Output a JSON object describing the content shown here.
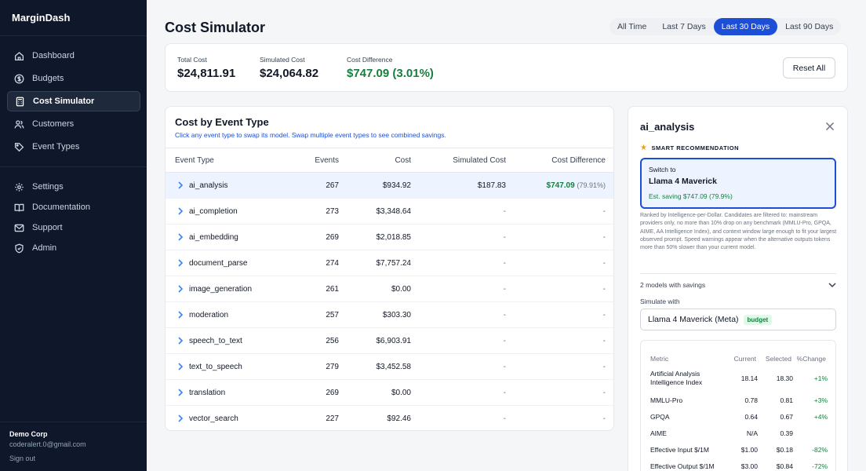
{
  "app": {
    "name": "MarginDash"
  },
  "sidebar": {
    "items": [
      {
        "label": "Dashboard",
        "icon": "home-icon"
      },
      {
        "label": "Budgets",
        "icon": "dollar-icon"
      },
      {
        "label": "Cost Simulator",
        "icon": "calculator-icon",
        "active": true
      },
      {
        "label": "Customers",
        "icon": "users-icon"
      },
      {
        "label": "Event Types",
        "icon": "tag-icon"
      }
    ],
    "secondary": [
      {
        "label": "Settings",
        "icon": "gear-icon"
      },
      {
        "label": "Documentation",
        "icon": "book-icon"
      },
      {
        "label": "Support",
        "icon": "mail-icon"
      },
      {
        "label": "Admin",
        "icon": "shield-icon"
      }
    ],
    "org_name": "Demo Corp",
    "email": "coderalert.0@gmail.com",
    "sign_out": "Sign out"
  },
  "header": {
    "title": "Cost Simulator",
    "ranges": [
      "All Time",
      "Last 7 Days",
      "Last 30 Days",
      "Last 90 Days"
    ],
    "active_range": "Last 30 Days"
  },
  "summary": {
    "total_cost_label": "Total Cost",
    "total_cost": "$24,811.91",
    "simulated_cost_label": "Simulated Cost",
    "simulated_cost": "$24,064.82",
    "cost_difference_label": "Cost Difference",
    "cost_difference": "$747.09 (3.01%)",
    "reset_label": "Reset All"
  },
  "table": {
    "title": "Cost by Event Type",
    "subtitle": "Click any event type to swap its model. Swap multiple event types to see combined savings.",
    "columns": [
      "Event Type",
      "Events",
      "Cost",
      "Simulated Cost",
      "Cost Difference"
    ],
    "rows": [
      {
        "name": "ai_analysis",
        "events": "267",
        "cost": "$934.92",
        "simulated": "$187.83",
        "diff": "$747.09",
        "diff_pct": "(79.91%)",
        "selected": true
      },
      {
        "name": "ai_completion",
        "events": "273",
        "cost": "$3,348.64",
        "simulated": "-",
        "diff": "-"
      },
      {
        "name": "ai_embedding",
        "events": "269",
        "cost": "$2,018.85",
        "simulated": "-",
        "diff": "-"
      },
      {
        "name": "document_parse",
        "events": "274",
        "cost": "$7,757.24",
        "simulated": "-",
        "diff": "-"
      },
      {
        "name": "image_generation",
        "events": "261",
        "cost": "$0.00",
        "simulated": "-",
        "diff": "-"
      },
      {
        "name": "moderation",
        "events": "257",
        "cost": "$303.30",
        "simulated": "-",
        "diff": "-"
      },
      {
        "name": "speech_to_text",
        "events": "256",
        "cost": "$6,903.91",
        "simulated": "-",
        "diff": "-"
      },
      {
        "name": "text_to_speech",
        "events": "279",
        "cost": "$3,452.58",
        "simulated": "-",
        "diff": "-"
      },
      {
        "name": "translation",
        "events": "269",
        "cost": "$0.00",
        "simulated": "-",
        "diff": "-"
      },
      {
        "name": "vector_search",
        "events": "227",
        "cost": "$92.46",
        "simulated": "-",
        "diff": "-"
      }
    ]
  },
  "panel": {
    "title": "ai_analysis",
    "rec_label": "SMART RECOMMENDATION",
    "rec_switch": "Switch to",
    "rec_model": "Llama 4 Maverick",
    "rec_saving": "Est. saving $747.09 (79.9%)",
    "rec_note": "Ranked by Intelligence-per-Dollar. Candidates are filtered to: mainstream providers only, no more than 10% drop on any benchmark (MMLU-Pro, GPQA, AIME, AA Intelligence Index), and context window large enough to fit your largest observed prompt. Speed warnings appear when the alternative outputs tokens more than 50% slower than your current model.",
    "models_toggle": "2 models with savings",
    "simulate_label": "Simulate with",
    "simulate_model": "Llama 4 Maverick (Meta)",
    "simulate_badge": "budget",
    "metrics_columns": [
      "Metric",
      "Current",
      "Selected",
      "%Change"
    ],
    "metrics": [
      {
        "name": "Artificial Analysis Intelligence Index",
        "current": "18.14",
        "selected": "18.30",
        "change": "+1%"
      },
      {
        "name": "MMLU-Pro",
        "current": "0.78",
        "selected": "0.81",
        "change": "+3%"
      },
      {
        "name": "GPQA",
        "current": "0.64",
        "selected": "0.67",
        "change": "+4%"
      },
      {
        "name": "AIME",
        "current": "N/A",
        "selected": "0.39",
        "change": ""
      },
      {
        "name": "Effective Input $/1M",
        "current": "$1.00",
        "selected": "$0.18",
        "change": "-82%"
      },
      {
        "name": "Effective Output $/1M",
        "current": "$3.00",
        "selected": "$0.84",
        "change": "-72%"
      }
    ]
  },
  "colors": {
    "accent": "#1d4ed8",
    "positive": "#15803d",
    "sidebar": "#0f172a"
  }
}
